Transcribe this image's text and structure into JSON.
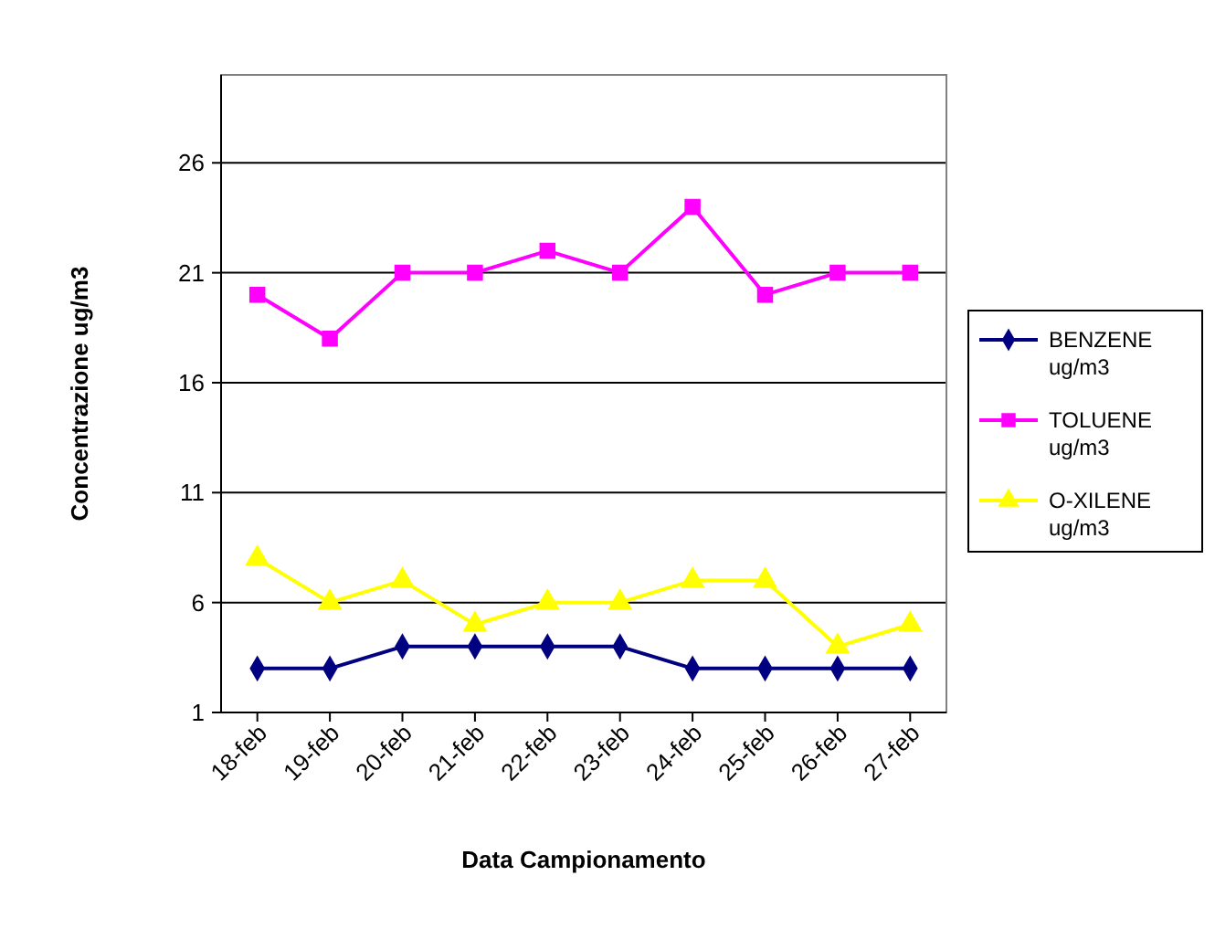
{
  "chart_data": {
    "type": "line",
    "xlabel": "Data Campionamento",
    "ylabel": "Concentrazione ug/m3",
    "categories": [
      "18-feb",
      "19-feb",
      "20-feb",
      "21-feb",
      "22-feb",
      "23-feb",
      "24-feb",
      "25-feb",
      "26-feb",
      "27-feb"
    ],
    "series": [
      {
        "name": "BENZENE ug/m3",
        "color": "#000080",
        "marker": "diamond",
        "values": [
          3,
          3,
          4,
          4,
          4,
          4,
          3,
          3,
          3,
          3
        ]
      },
      {
        "name": "TOLUENE ug/m3",
        "color": "#ff00ff",
        "marker": "square",
        "values": [
          20,
          18,
          21,
          21,
          22,
          21,
          24,
          20,
          21,
          21
        ]
      },
      {
        "name": "O-XILENE ug/m3",
        "color": "#ffff00",
        "marker": "triangle",
        "values": [
          8,
          6,
          7,
          5,
          6,
          6,
          7,
          7,
          4,
          5
        ]
      }
    ],
    "ylim": [
      1,
      30
    ],
    "yticks": [
      1,
      6,
      11,
      16,
      21,
      26
    ],
    "grid": "y",
    "legend": "right",
    "line_style": "solid"
  }
}
